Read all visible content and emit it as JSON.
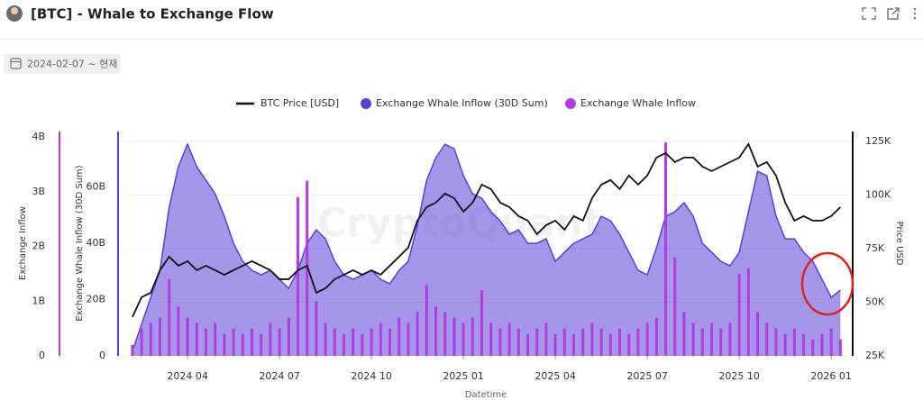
{
  "header": {
    "title": "[BTC] - Whale to Exchange Flow"
  },
  "filter": {
    "date_range": "2024-02-07 ~ 현재"
  },
  "chart_data": {
    "type": "combo",
    "watermark": "CryptoQuant",
    "axis_labels": {
      "x": "Datetime",
      "y": "Exchange Inflow",
      "y3": "Exchange Whale Inflow (30D Sum)",
      "y2": "Price USD"
    },
    "x": [
      2024.1,
      2024.125,
      2024.15,
      2024.175,
      2024.2,
      2024.225,
      2024.25,
      2024.275,
      2024.3,
      2024.325,
      2024.35,
      2024.375,
      2024.4,
      2024.425,
      2024.45,
      2024.475,
      2024.5,
      2024.525,
      2024.55,
      2024.575,
      2024.6,
      2024.625,
      2024.65,
      2024.675,
      2024.7,
      2024.725,
      2024.75,
      2024.775,
      2024.8,
      2024.825,
      2024.85,
      2024.875,
      2024.9,
      2024.925,
      2024.95,
      2024.975,
      2025.0,
      2025.025,
      2025.05,
      2025.075,
      2025.1,
      2025.125,
      2025.15,
      2025.175,
      2025.2,
      2025.225,
      2025.25,
      2025.275,
      2025.3,
      2025.325,
      2025.35,
      2025.375,
      2025.4,
      2025.425,
      2025.45,
      2025.475,
      2025.5,
      2025.525,
      2025.55,
      2025.575,
      2025.6,
      2025.625,
      2025.65,
      2025.675,
      2025.7,
      2025.725,
      2025.75,
      2025.775,
      2025.8,
      2025.825,
      2025.85,
      2025.875,
      2025.9,
      2025.925,
      2025.95,
      2025.975,
      2026.0,
      2026.025
    ],
    "xlim": [
      2024.066,
      2026.056
    ],
    "xticks": [
      {
        "value": 2024.25,
        "label": "2024 04"
      },
      {
        "value": 2024.5,
        "label": "2024 07"
      },
      {
        "value": 2024.75,
        "label": "2024 10"
      },
      {
        "value": 2025.0,
        "label": "2025 01"
      },
      {
        "value": 2025.25,
        "label": "2025 04"
      },
      {
        "value": 2025.5,
        "label": "2025 07"
      },
      {
        "value": 2025.75,
        "label": "2025 10"
      },
      {
        "value": 2026.0,
        "label": "2026 01"
      }
    ],
    "ylim": [
      0,
      4
    ],
    "yticks": [
      0,
      {
        "value": 1,
        "label": "1B"
      },
      {
        "value": 2,
        "label": "2B"
      },
      {
        "value": 3,
        "label": "3B"
      },
      {
        "value": 4,
        "label": "4B"
      }
    ],
    "y3lim": [
      0,
      77.8
    ],
    "y3ticks": [
      0,
      {
        "value": 20,
        "label": "20B"
      },
      {
        "value": 40,
        "label": "40B"
      },
      {
        "value": 60,
        "label": "60B"
      }
    ],
    "y2lim": [
      25,
      127
    ],
    "y2ticks": [
      {
        "value": 25,
        "label": "25K"
      },
      {
        "value": 50,
        "label": "50K"
      },
      {
        "value": 75,
        "label": "75K"
      },
      {
        "value": 100,
        "label": "100K"
      },
      {
        "value": 125,
        "label": "125K"
      }
    ],
    "grid": true,
    "series": [
      {
        "name": "BTC Price [USD]",
        "type": "line",
        "axis": "y2",
        "color": "#111111",
        "values": [
          43.1,
          52.3,
          54.4,
          64.9,
          71.2,
          67.0,
          69.1,
          64.9,
          67.0,
          64.9,
          62.8,
          64.9,
          67.0,
          69.1,
          67.0,
          64.9,
          60.7,
          60.7,
          64.9,
          67.0,
          54.4,
          56.5,
          60.7,
          62.8,
          64.9,
          62.8,
          64.9,
          62.8,
          67.0,
          71.2,
          75.4,
          88.0,
          94.3,
          96.4,
          100.6,
          98.5,
          92.2,
          96.4,
          104.8,
          102.7,
          96.4,
          94.3,
          90.1,
          88.0,
          81.7,
          85.9,
          88.0,
          83.8,
          90.1,
          88.0,
          98.5,
          104.8,
          106.9,
          102.7,
          109.0,
          104.8,
          109.0,
          117.4,
          119.5,
          115.3,
          117.4,
          117.4,
          113.2,
          111.1,
          113.2,
          115.3,
          117.4,
          123.7,
          113.2,
          115.3,
          109.0,
          96.4,
          88.0,
          90.1,
          88.0,
          88.0,
          90.1,
          94.3
        ]
      },
      {
        "name": "Exchange Whale Inflow (30D Sum)",
        "type": "area",
        "axis": "y3",
        "color": "#5b3fd9",
        "values": [
          1.6,
          11.2,
          20.8,
          30.4,
          52.8,
          67.2,
          75.2,
          67.2,
          62.4,
          57.6,
          49.6,
          40,
          33.6,
          30.4,
          28.8,
          30.4,
          27.2,
          24,
          30.4,
          40,
          44.8,
          41.6,
          33.6,
          28.8,
          27.2,
          28.8,
          30.4,
          27.2,
          25.6,
          30.4,
          33.6,
          46.4,
          62.4,
          70.4,
          75.2,
          73.6,
          64,
          57.6,
          56,
          51.2,
          48,
          43.2,
          44.8,
          40,
          40,
          41.6,
          33.6,
          36.8,
          40,
          41.6,
          43.2,
          49.6,
          48,
          43.2,
          36.8,
          30.4,
          28.8,
          38.4,
          49.6,
          51.2,
          54.4,
          49.6,
          40,
          36.8,
          33.6,
          32,
          36.8,
          51.2,
          65.6,
          64,
          49.6,
          41.6,
          41.6,
          36.8,
          33.6,
          27.2,
          20.8,
          23.4
        ]
      },
      {
        "name": "Exchange Whale Inflow",
        "type": "bar",
        "axis": "y",
        "color": "#b33be3",
        "values": [
          0.2,
          0.5,
          0.6,
          0.7,
          1.4,
          0.9,
          0.7,
          0.6,
          0.5,
          0.6,
          0.4,
          0.5,
          0.4,
          0.5,
          0.4,
          0.6,
          0.5,
          0.7,
          2.9,
          3.2,
          1.0,
          0.6,
          0.5,
          0.4,
          0.5,
          0.4,
          0.5,
          0.6,
          0.5,
          0.7,
          0.6,
          0.8,
          1.3,
          0.9,
          0.8,
          0.7,
          0.6,
          0.7,
          1.2,
          0.6,
          0.5,
          0.6,
          0.5,
          0.4,
          0.5,
          0.6,
          0.4,
          0.5,
          0.4,
          0.5,
          0.6,
          0.5,
          0.4,
          0.5,
          0.4,
          0.5,
          0.6,
          0.7,
          3.9,
          1.8,
          0.8,
          0.6,
          0.5,
          0.6,
          0.5,
          0.6,
          1.5,
          1.6,
          0.8,
          0.6,
          0.5,
          0.4,
          0.5,
          0.4,
          0.3,
          0.4,
          0.5,
          0.3
        ]
      }
    ]
  }
}
